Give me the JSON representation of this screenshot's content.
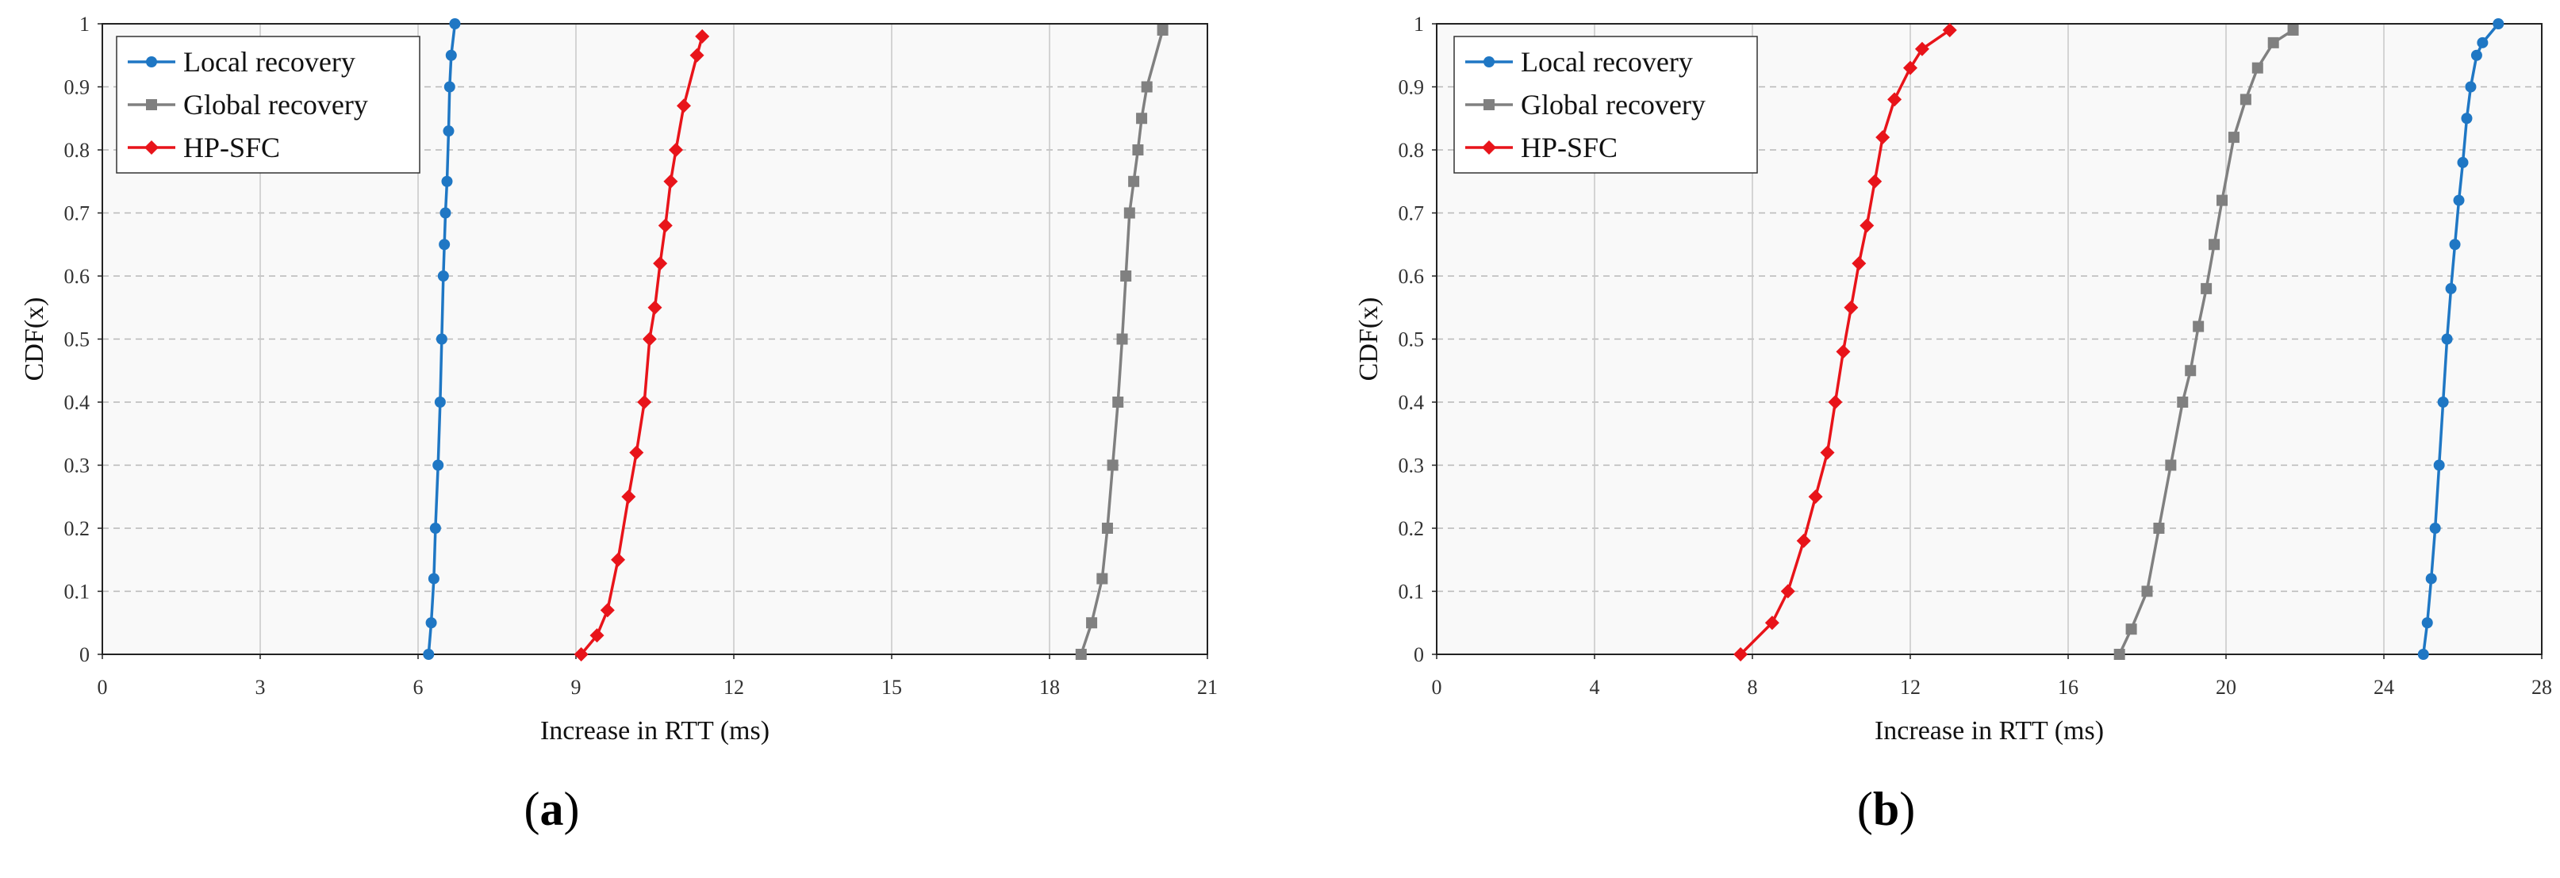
{
  "chart_data": [
    {
      "type": "line",
      "panel_label": "(a)",
      "panel_letter": "a",
      "xlabel": "Increase in RTT (ms)",
      "ylabel": "CDF(x)",
      "xlim": [
        0,
        21
      ],
      "ylim": [
        0,
        1
      ],
      "xticks": [
        0,
        3,
        6,
        9,
        12,
        15,
        18,
        21
      ],
      "yticks": [
        0,
        0.1,
        0.2,
        0.3,
        0.4,
        0.5,
        0.6,
        0.7,
        0.8,
        0.9,
        1
      ],
      "grid": true,
      "legend_position": "top-left",
      "series": [
        {
          "name": "Local recovery",
          "color": "#1f77c4",
          "marker": "circle",
          "x": [
            6.2,
            6.25,
            6.3,
            6.33,
            6.38,
            6.42,
            6.45,
            6.48,
            6.5,
            6.52,
            6.55,
            6.58,
            6.6,
            6.63,
            6.7
          ],
          "y": [
            0.0,
            0.05,
            0.12,
            0.2,
            0.3,
            0.4,
            0.5,
            0.6,
            0.65,
            0.7,
            0.75,
            0.83,
            0.9,
            0.95,
            1.0
          ]
        },
        {
          "name": "Global recovery",
          "color": "#808080",
          "marker": "square",
          "x": [
            18.6,
            18.8,
            19.0,
            19.1,
            19.2,
            19.3,
            19.38,
            19.45,
            19.52,
            19.6,
            19.68,
            19.75,
            19.85,
            20.15
          ],
          "y": [
            0.0,
            0.05,
            0.12,
            0.2,
            0.3,
            0.4,
            0.5,
            0.6,
            0.7,
            0.75,
            0.8,
            0.85,
            0.9,
            0.99
          ]
        },
        {
          "name": "HP-SFC",
          "color": "#e8141a",
          "marker": "diamond",
          "x": [
            9.1,
            9.4,
            9.6,
            9.8,
            10.0,
            10.15,
            10.3,
            10.4,
            10.5,
            10.6,
            10.7,
            10.8,
            10.9,
            11.05,
            11.3,
            11.4
          ],
          "y": [
            0.0,
            0.03,
            0.07,
            0.15,
            0.25,
            0.32,
            0.4,
            0.5,
            0.55,
            0.62,
            0.68,
            0.75,
            0.8,
            0.87,
            0.95,
            0.98
          ]
        }
      ]
    },
    {
      "type": "line",
      "panel_label": "(b)",
      "panel_letter": "b",
      "xlabel": "Increase in RTT (ms)",
      "ylabel": "CDF(x)",
      "xlim": [
        0,
        28
      ],
      "ylim": [
        0,
        1
      ],
      "xticks": [
        0,
        4,
        8,
        12,
        16,
        20,
        24,
        28
      ],
      "yticks": [
        0,
        0.1,
        0.2,
        0.3,
        0.4,
        0.5,
        0.6,
        0.7,
        0.8,
        0.9,
        1
      ],
      "grid": true,
      "legend_position": "top-left",
      "series": [
        {
          "name": "Local recovery",
          "color": "#1f77c4",
          "marker": "circle",
          "x": [
            25.0,
            25.1,
            25.2,
            25.3,
            25.4,
            25.5,
            25.6,
            25.7,
            25.8,
            25.9,
            26.0,
            26.1,
            26.2,
            26.35,
            26.5,
            26.9
          ],
          "y": [
            0.0,
            0.05,
            0.12,
            0.2,
            0.3,
            0.4,
            0.5,
            0.58,
            0.65,
            0.72,
            0.78,
            0.85,
            0.9,
            0.95,
            0.97,
            1.0
          ]
        },
        {
          "name": "Global recovery",
          "color": "#808080",
          "marker": "square",
          "x": [
            17.3,
            17.6,
            18.0,
            18.3,
            18.6,
            18.9,
            19.1,
            19.3,
            19.5,
            19.7,
            19.9,
            20.2,
            20.5,
            20.8,
            21.2,
            21.7
          ],
          "y": [
            0.0,
            0.04,
            0.1,
            0.2,
            0.3,
            0.4,
            0.45,
            0.52,
            0.58,
            0.65,
            0.72,
            0.82,
            0.88,
            0.93,
            0.97,
            0.99
          ]
        },
        {
          "name": "HP-SFC",
          "color": "#e8141a",
          "marker": "diamond",
          "x": [
            7.7,
            8.5,
            8.9,
            9.3,
            9.6,
            9.9,
            10.1,
            10.3,
            10.5,
            10.7,
            10.9,
            11.1,
            11.3,
            11.6,
            12.0,
            12.3,
            13.0
          ],
          "y": [
            0.0,
            0.05,
            0.1,
            0.18,
            0.25,
            0.32,
            0.4,
            0.48,
            0.55,
            0.62,
            0.68,
            0.75,
            0.82,
            0.88,
            0.93,
            0.96,
            0.99
          ]
        }
      ]
    }
  ]
}
